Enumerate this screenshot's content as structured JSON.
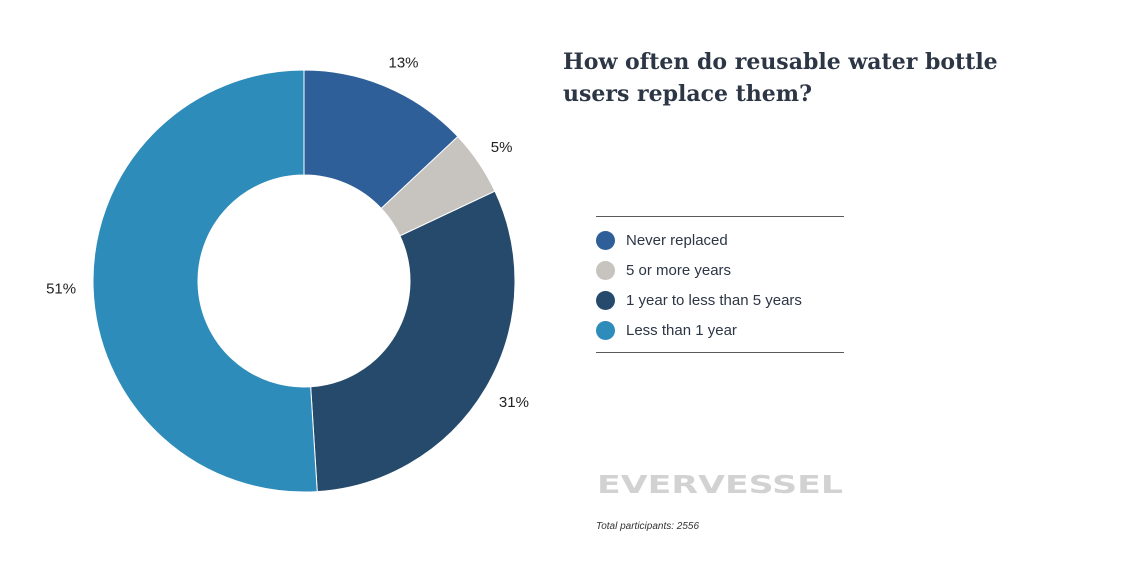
{
  "title": "How often do reusable water bottle users replace them?",
  "chart_data": {
    "type": "pie",
    "donut": true,
    "categories": [
      "Never replaced",
      "5 or more years",
      "1 year to less than 5 years",
      "Less than 1 year"
    ],
    "values": [
      13,
      5,
      31,
      51
    ],
    "labels": [
      "13%",
      "5%",
      "31%",
      "51%"
    ],
    "colors": [
      "#2e5f98",
      "#c7c3bf",
      "#254a6b",
      "#2e8cba"
    ],
    "legend_position": "right"
  },
  "legend": {
    "items": [
      {
        "label": "Never replaced",
        "color": "#2e5f98"
      },
      {
        "label": "5 or more years",
        "color": "#c7c3bf"
      },
      {
        "label": "1 year to less than 5 years",
        "color": "#254a6b"
      },
      {
        "label": "Less than 1 year",
        "color": "#2e8cba"
      }
    ]
  },
  "brand": {
    "logo_text": "EVERVESSEL"
  },
  "footnote": "Total participants: 2556"
}
